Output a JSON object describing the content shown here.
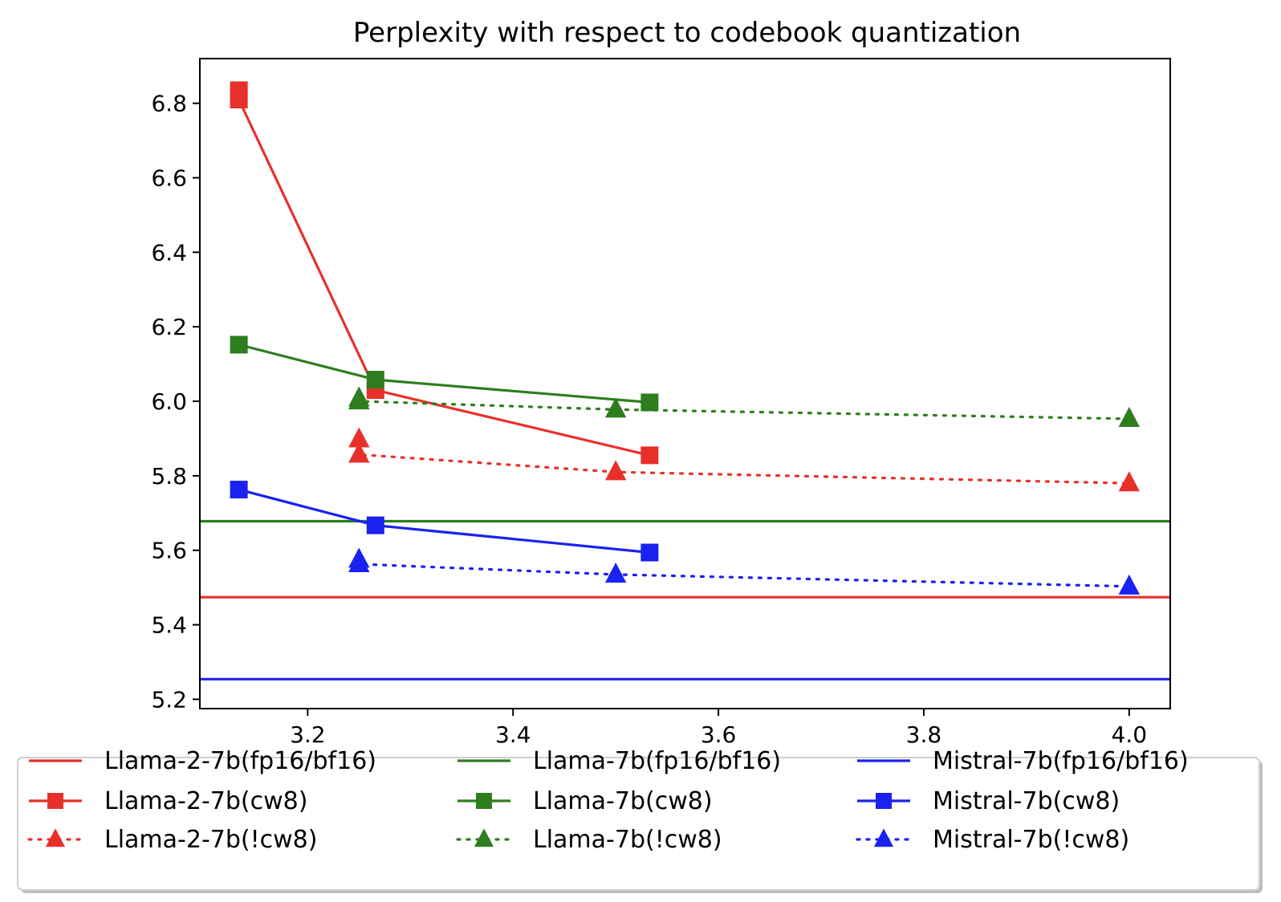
{
  "chart_data": {
    "type": "line",
    "title": "Perplexity with respect to codebook quantization",
    "xlabel": "",
    "ylabel": "",
    "xlim": [
      3.095,
      4.04
    ],
    "ylim": [
      5.175,
      6.92
    ],
    "xticks": [
      {
        "value": 3.2,
        "label": "3.2"
      },
      {
        "value": 3.4,
        "label": "3.4"
      },
      {
        "value": 3.6,
        "label": "3.6"
      },
      {
        "value": 3.8,
        "label": "3.8"
      },
      {
        "value": 4.0,
        "label": "4.0"
      }
    ],
    "yticks": [
      {
        "value": 5.2,
        "label": "5.2"
      },
      {
        "value": 5.4,
        "label": "5.4"
      },
      {
        "value": 5.6,
        "label": "5.6"
      },
      {
        "value": 5.8,
        "label": "5.8"
      },
      {
        "value": 6.0,
        "label": "6.0"
      },
      {
        "value": 6.2,
        "label": "6.2"
      },
      {
        "value": 6.4,
        "label": "6.4"
      },
      {
        "value": 6.6,
        "label": "6.6"
      },
      {
        "value": 6.8,
        "label": "6.8"
      }
    ],
    "grid": false,
    "legend_position": "bottom",
    "series": [
      {
        "name": "Llama-2-7b(fp16/bf16)",
        "key": "llama2-fp16",
        "color": "#e8302a",
        "linestyle": "solid",
        "marker": "none",
        "hline": 5.474
      },
      {
        "name": "Llama-7b(fp16/bf16)",
        "key": "llama-fp16",
        "color": "#2e7d1f",
        "linestyle": "solid",
        "marker": "none",
        "hline": 5.678
      },
      {
        "name": "Mistral-7b(fp16/bf16)",
        "key": "mistral-fp16",
        "color": "#1a22f0",
        "linestyle": "solid",
        "marker": "none",
        "hline": 5.254
      },
      {
        "name": "Llama-2-7b(cw8)",
        "key": "llama2-cw8",
        "color": "#e8302a",
        "linestyle": "solid",
        "marker": "square",
        "points": [
          [
            3.133,
            6.835
          ],
          [
            3.133,
            6.81
          ],
          [
            3.266,
            6.03
          ],
          [
            3.533,
            5.855
          ]
        ]
      },
      {
        "name": "Llama-7b(cw8)",
        "key": "llama-cw8",
        "color": "#2e7d1f",
        "linestyle": "solid",
        "marker": "square",
        "points": [
          [
            3.133,
            6.152
          ],
          [
            3.266,
            6.058
          ],
          [
            3.533,
            5.997
          ]
        ]
      },
      {
        "name": "Mistral-7b(cw8)",
        "key": "mistral-cw8",
        "color": "#1a22f0",
        "linestyle": "solid",
        "marker": "square",
        "points": [
          [
            3.133,
            5.763
          ],
          [
            3.266,
            5.667
          ],
          [
            3.533,
            5.594
          ]
        ]
      },
      {
        "name": "Llama-2-7b(!cw8)",
        "key": "llama2-ncw8",
        "color": "#e8302a",
        "linestyle": "dotted",
        "marker": "triangle",
        "points": [
          [
            3.25,
            5.898
          ],
          [
            3.25,
            5.857
          ],
          [
            3.5,
            5.81
          ],
          [
            4.0,
            5.78
          ]
        ]
      },
      {
        "name": "Llama-7b(!cw8)",
        "key": "llama-ncw8",
        "color": "#2e7d1f",
        "linestyle": "dotted",
        "marker": "triangle",
        "points": [
          [
            3.25,
            6.008
          ],
          [
            3.25,
            6.0
          ],
          [
            3.5,
            5.978
          ],
          [
            4.0,
            5.953
          ]
        ]
      },
      {
        "name": "Mistral-7b(!cw8)",
        "key": "mistral-ncw8",
        "color": "#1a22f0",
        "linestyle": "dotted",
        "marker": "triangle",
        "points": [
          [
            3.25,
            5.575
          ],
          [
            3.25,
            5.563
          ],
          [
            3.5,
            5.535
          ],
          [
            4.0,
            5.503
          ]
        ]
      }
    ],
    "legend_order": [
      "llama2-fp16",
      "llama-fp16",
      "mistral-fp16",
      "llama2-cw8",
      "llama-cw8",
      "mistral-cw8",
      "llama2-ncw8",
      "llama-ncw8",
      "mistral-ncw8"
    ]
  }
}
